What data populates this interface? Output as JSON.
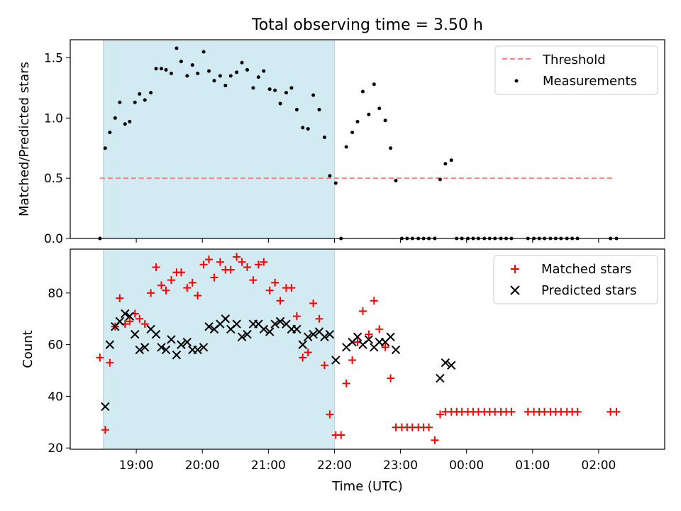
{
  "figure": {
    "title": "Total observing time = 3.50 h",
    "xlabel": "Time (UTC)",
    "xticks": [
      {
        "value": 19,
        "label": "19:00"
      },
      {
        "value": 20,
        "label": "20:00"
      },
      {
        "value": 21,
        "label": "21:00"
      },
      {
        "value": 22,
        "label": "22:00"
      },
      {
        "value": 23,
        "label": "23:00"
      },
      {
        "value": 24,
        "label": "00:00"
      },
      {
        "value": 25,
        "label": "01:00"
      },
      {
        "value": 26,
        "label": "02:00"
      }
    ],
    "shaded_interval": {
      "start": 18.5,
      "end": 22.0,
      "color": "#add8e6"
    }
  },
  "chart_data": [
    {
      "type": "scatter",
      "ylabel": "Matched/Predicted stars",
      "ylim": [
        0,
        1.65
      ],
      "xlim": [
        18.0,
        27.0
      ],
      "yticks": [
        0.0,
        0.5,
        1.0,
        1.5
      ],
      "yticklabels": [
        "0.0",
        "0.5",
        "1.0",
        "1.5"
      ],
      "legend_position": "upper right",
      "threshold": {
        "name": "Threshold",
        "value": 0.5,
        "x_range": [
          18.45,
          26.25
        ],
        "color": "#ff7f7f",
        "style": "dashed"
      },
      "series": [
        {
          "name": "Measurements",
          "color": "#000000",
          "marker": "dot",
          "points": [
            [
              18.45,
              0.0
            ],
            [
              18.53,
              0.75
            ],
            [
              18.6,
              0.88
            ],
            [
              18.68,
              1.0
            ],
            [
              18.75,
              1.13
            ],
            [
              18.83,
              0.95
            ],
            [
              18.9,
              0.97
            ],
            [
              18.98,
              1.13
            ],
            [
              19.05,
              1.2
            ],
            [
              19.13,
              1.15
            ],
            [
              19.22,
              1.21
            ],
            [
              19.3,
              1.41
            ],
            [
              19.38,
              1.41
            ],
            [
              19.45,
              1.4
            ],
            [
              19.53,
              1.37
            ],
            [
              19.61,
              1.58
            ],
            [
              19.68,
              1.47
            ],
            [
              19.77,
              1.35
            ],
            [
              19.85,
              1.44
            ],
            [
              19.93,
              1.37
            ],
            [
              20.02,
              1.55
            ],
            [
              20.1,
              1.39
            ],
            [
              20.18,
              1.31
            ],
            [
              20.27,
              1.35
            ],
            [
              20.35,
              1.27
            ],
            [
              20.43,
              1.35
            ],
            [
              20.52,
              1.38
            ],
            [
              20.6,
              1.46
            ],
            [
              20.68,
              1.4
            ],
            [
              20.77,
              1.25
            ],
            [
              20.85,
              1.34
            ],
            [
              20.93,
              1.39
            ],
            [
              21.02,
              1.24
            ],
            [
              21.1,
              1.23
            ],
            [
              21.18,
              1.12
            ],
            [
              21.27,
              1.21
            ],
            [
              21.35,
              1.25
            ],
            [
              21.43,
              1.07
            ],
            [
              21.52,
              0.92
            ],
            [
              21.6,
              0.91
            ],
            [
              21.68,
              1.19
            ],
            [
              21.77,
              1.07
            ],
            [
              21.85,
              0.84
            ],
            [
              21.93,
              0.52
            ],
            [
              22.02,
              0.46
            ],
            [
              22.1,
              0.0
            ],
            [
              22.18,
              0.76
            ],
            [
              22.27,
              0.88
            ],
            [
              22.35,
              0.97
            ],
            [
              22.43,
              1.22
            ],
            [
              22.52,
              1.03
            ],
            [
              22.6,
              1.28
            ],
            [
              22.68,
              1.08
            ],
            [
              22.77,
              0.98
            ],
            [
              22.85,
              0.75
            ],
            [
              22.93,
              0.48
            ],
            [
              23.02,
              0.0
            ],
            [
              23.1,
              0.0
            ],
            [
              23.18,
              0.0
            ],
            [
              23.27,
              0.0
            ],
            [
              23.35,
              0.0
            ],
            [
              23.43,
              0.0
            ],
            [
              23.52,
              0.0
            ],
            [
              23.6,
              0.49
            ],
            [
              23.68,
              0.62
            ],
            [
              23.77,
              0.65
            ],
            [
              23.85,
              0.0
            ],
            [
              23.93,
              0.0
            ],
            [
              24.02,
              0.0
            ],
            [
              24.1,
              0.0
            ],
            [
              24.18,
              0.0
            ],
            [
              24.27,
              0.0
            ],
            [
              24.35,
              0.0
            ],
            [
              24.43,
              0.0
            ],
            [
              24.52,
              0.0
            ],
            [
              24.6,
              0.0
            ],
            [
              24.68,
              0.0
            ],
            [
              24.93,
              0.0
            ],
            [
              25.02,
              0.0
            ],
            [
              25.1,
              0.0
            ],
            [
              25.18,
              0.0
            ],
            [
              25.27,
              0.0
            ],
            [
              25.35,
              0.0
            ],
            [
              25.43,
              0.0
            ],
            [
              25.52,
              0.0
            ],
            [
              25.6,
              0.0
            ],
            [
              25.68,
              0.0
            ],
            [
              26.18,
              0.0
            ],
            [
              26.27,
              0.0
            ]
          ]
        }
      ]
    },
    {
      "type": "scatter",
      "ylabel": "Count",
      "ylim": [
        19.5,
        97
      ],
      "xlim": [
        18.0,
        27.0
      ],
      "yticks": [
        20,
        40,
        60,
        80
      ],
      "yticklabels": [
        "20",
        "40",
        "60",
        "80"
      ],
      "legend_position": "upper right",
      "series": [
        {
          "name": "Matched stars",
          "color": "#ff0000",
          "marker": "plus",
          "points": [
            [
              18.45,
              55
            ],
            [
              18.53,
              27
            ],
            [
              18.6,
              53
            ],
            [
              18.68,
              67
            ],
            [
              18.75,
              78
            ],
            [
              18.83,
              68
            ],
            [
              18.9,
              69
            ],
            [
              18.98,
              72
            ],
            [
              19.05,
              70
            ],
            [
              19.13,
              68
            ],
            [
              19.22,
              80
            ],
            [
              19.3,
              90
            ],
            [
              19.38,
              83
            ],
            [
              19.45,
              81
            ],
            [
              19.53,
              85
            ],
            [
              19.61,
              88
            ],
            [
              19.68,
              88
            ],
            [
              19.77,
              82
            ],
            [
              19.85,
              84
            ],
            [
              19.93,
              79
            ],
            [
              20.02,
              91
            ],
            [
              20.1,
              93
            ],
            [
              20.18,
              86
            ],
            [
              20.27,
              92
            ],
            [
              20.35,
              89
            ],
            [
              20.43,
              89
            ],
            [
              20.52,
              94
            ],
            [
              20.6,
              92
            ],
            [
              20.68,
              90
            ],
            [
              20.77,
              85
            ],
            [
              20.85,
              91
            ],
            [
              20.93,
              92
            ],
            [
              21.02,
              81
            ],
            [
              21.1,
              84
            ],
            [
              21.18,
              77
            ],
            [
              21.27,
              82
            ],
            [
              21.35,
              82
            ],
            [
              21.43,
              71
            ],
            [
              21.52,
              55
            ],
            [
              21.6,
              57
            ],
            [
              21.68,
              76
            ],
            [
              21.77,
              70
            ],
            [
              21.85,
              52
            ],
            [
              21.93,
              33
            ],
            [
              22.02,
              25
            ],
            [
              22.1,
              25
            ],
            [
              22.18,
              45
            ],
            [
              22.27,
              54
            ],
            [
              22.35,
              61
            ],
            [
              22.43,
              73
            ],
            [
              22.52,
              64
            ],
            [
              22.6,
              77
            ],
            [
              22.68,
              66
            ],
            [
              22.77,
              59
            ],
            [
              22.85,
              47
            ],
            [
              22.93,
              28
            ],
            [
              23.02,
              28
            ],
            [
              23.1,
              28
            ],
            [
              23.18,
              28
            ],
            [
              23.27,
              28
            ],
            [
              23.35,
              28
            ],
            [
              23.43,
              28
            ],
            [
              23.52,
              23
            ],
            [
              23.6,
              33
            ],
            [
              23.68,
              34
            ],
            [
              23.77,
              34
            ],
            [
              23.85,
              34
            ],
            [
              23.93,
              34
            ],
            [
              24.02,
              34
            ],
            [
              24.1,
              34
            ],
            [
              24.18,
              34
            ],
            [
              24.27,
              34
            ],
            [
              24.35,
              34
            ],
            [
              24.43,
              34
            ],
            [
              24.52,
              34
            ],
            [
              24.6,
              34
            ],
            [
              24.68,
              34
            ],
            [
              24.93,
              34
            ],
            [
              25.02,
              34
            ],
            [
              25.1,
              34
            ],
            [
              25.18,
              34
            ],
            [
              25.27,
              34
            ],
            [
              25.35,
              34
            ],
            [
              25.43,
              34
            ],
            [
              25.52,
              34
            ],
            [
              25.6,
              34
            ],
            [
              25.68,
              34
            ],
            [
              26.18,
              34
            ],
            [
              26.27,
              34
            ]
          ]
        },
        {
          "name": "Predicted stars",
          "color": "#000000",
          "marker": "x",
          "points": [
            [
              18.53,
              36
            ],
            [
              18.6,
              60
            ],
            [
              18.68,
              67
            ],
            [
              18.75,
              69
            ],
            [
              18.83,
              72
            ],
            [
              18.9,
              71
            ],
            [
              18.98,
              64
            ],
            [
              19.05,
              58
            ],
            [
              19.13,
              59
            ],
            [
              19.22,
              66
            ],
            [
              19.3,
              64
            ],
            [
              19.38,
              59
            ],
            [
              19.45,
              58
            ],
            [
              19.53,
              62
            ],
            [
              19.61,
              56
            ],
            [
              19.68,
              60
            ],
            [
              19.77,
              61
            ],
            [
              19.85,
              58
            ],
            [
              19.93,
              58
            ],
            [
              20.02,
              59
            ],
            [
              20.1,
              67
            ],
            [
              20.18,
              66
            ],
            [
              20.27,
              68
            ],
            [
              20.35,
              70
            ],
            [
              20.43,
              66
            ],
            [
              20.52,
              68
            ],
            [
              20.6,
              63
            ],
            [
              20.68,
              64
            ],
            [
              20.77,
              68
            ],
            [
              20.85,
              68
            ],
            [
              20.93,
              66
            ],
            [
              21.02,
              65
            ],
            [
              21.1,
              68
            ],
            [
              21.18,
              69
            ],
            [
              21.27,
              68
            ],
            [
              21.35,
              66
            ],
            [
              21.43,
              66
            ],
            [
              21.52,
              60
            ],
            [
              21.6,
              63
            ],
            [
              21.68,
              64
            ],
            [
              21.77,
              65
            ],
            [
              21.85,
              63
            ],
            [
              21.93,
              64
            ],
            [
              22.02,
              54
            ],
            [
              22.18,
              59
            ],
            [
              22.27,
              61
            ],
            [
              22.35,
              63
            ],
            [
              22.43,
              60
            ],
            [
              22.52,
              62
            ],
            [
              22.6,
              59
            ],
            [
              22.68,
              61
            ],
            [
              22.77,
              61
            ],
            [
              22.85,
              63
            ],
            [
              22.93,
              58
            ],
            [
              23.6,
              47
            ],
            [
              23.68,
              53
            ],
            [
              23.77,
              52
            ]
          ]
        }
      ]
    }
  ]
}
